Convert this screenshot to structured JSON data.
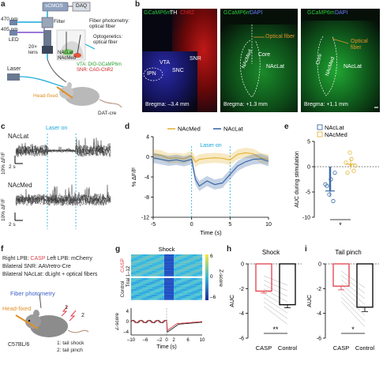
{
  "colors": {
    "nacmed": "#e5b53a",
    "naclat": "#3b6aa8",
    "casp": "#e0404a",
    "laser": "#19a8d8",
    "gcamp": "#28c83a",
    "chr2": "#e02020",
    "dapi": "#2030d0"
  },
  "panels": {
    "a": "a",
    "b": "b",
    "c": "c",
    "d": "d",
    "e": "e",
    "f": "f",
    "g": "g",
    "h": "h",
    "i": "i"
  },
  "a": {
    "nm470": "470 nm",
    "nm405": "405 nm",
    "led": "LED",
    "filter": "Filter",
    "scmos": "sCMOS",
    "daq": "DAQ",
    "lens": "20×\nlens",
    "laser": "Laser",
    "fp": "Fiber photometry:\noptical fiber",
    "optog": "Optogenetics:\noptical fiber",
    "naclat": "NAcLat",
    "nacmed": "NAcMed",
    "vta": "VTA: DIO-GCaMP6m",
    "snr": "SNR: CAG-ChR2",
    "headfixed": "Head-fixed",
    "datcre": "DAT-cre"
  },
  "b": {
    "img1": {
      "t1": "GCaMP6m",
      "t2": "TH",
      "t3": "ChR2",
      "vta": "VTA",
      "snr": "SNR",
      "snc": "SNC",
      "ipn": "IPN",
      "bregma": "Bregma: –3.4 mm"
    },
    "img2": {
      "t1": "GCaMP6m",
      "t2": "DAPI",
      "fiber": "Optical fiber",
      "core": "Core",
      "nacmed": "NAcMed",
      "naclat": "NAcLat",
      "bregma": "Bregma: +1.3 mm"
    },
    "img3": {
      "t1": "GCaMP6m",
      "t2": "DAPI",
      "fiber": "Optical\nfiber",
      "core": "Core",
      "nacmed": "NAcMed",
      "naclat": "NAcLat",
      "bregma": "Bregma: +1.1 mm"
    }
  },
  "c": {
    "naclat": "NAcLat",
    "nacmed": "NAcMed",
    "laser": "Laser on",
    "scale_y": "10% ΔF/F",
    "scale_x": "2 s"
  },
  "chart_data": [
    {
      "type": "line",
      "panel": "d",
      "legend": [
        "NAcMed",
        "NAcLat"
      ],
      "annotation": "Laser on",
      "xlabel": "Time (s)",
      "ylabel": "% ΔF/F",
      "xlim": [
        -5,
        10
      ],
      "ylim": [
        -12,
        4
      ],
      "xticks": [
        -5,
        0,
        5,
        10
      ],
      "yticks": [
        4,
        0,
        -4,
        -8,
        -12
      ],
      "laser_window": [
        0,
        5
      ],
      "series": [
        {
          "name": "NAcMed",
          "x": [
            -5,
            -4,
            -3,
            -2,
            -1,
            0,
            0.5,
            1,
            2,
            3,
            4,
            5,
            6,
            7,
            8,
            9,
            10
          ],
          "y": [
            0.5,
            0.3,
            -0.3,
            -0.2,
            -0.4,
            0.2,
            -1.0,
            -0.5,
            -0.3,
            -0.2,
            -0.3,
            -0.6,
            0.5,
            0.8,
            0.6,
            -0.2,
            -0.5
          ]
        },
        {
          "name": "NAcLat",
          "x": [
            -5,
            -4,
            -3,
            -2,
            -1,
            0,
            0.5,
            1,
            2,
            3,
            4,
            5,
            6,
            7,
            8,
            9,
            10
          ],
          "y": [
            -0.2,
            -0.5,
            -0.8,
            -0.6,
            -0.9,
            -0.5,
            -4.5,
            -5.8,
            -4.8,
            -5.5,
            -5.2,
            -3.5,
            -1.8,
            -1.0,
            -0.5,
            -0.4,
            -0.9
          ]
        }
      ]
    },
    {
      "type": "scatter",
      "panel": "e",
      "legend": [
        "NAcLat",
        "NAcMed"
      ],
      "ylabel": "AUC during stimulation",
      "ylim": [
        -10,
        5
      ],
      "yticks": [
        5,
        0,
        -5,
        -10
      ],
      "categories": [
        "NAcLat",
        "NAcMed"
      ],
      "means": [
        -4.8,
        0.5
      ],
      "sem": [
        1.2,
        1.0
      ],
      "points": [
        [
          -3.5,
          -5.5,
          -6.8,
          -3.8,
          -2.5,
          -1.2
        ],
        [
          0.8,
          2.8,
          -0.8,
          -1.2,
          1.5,
          0.2
        ]
      ],
      "significance": "*"
    },
    {
      "type": "bar",
      "panel": "h",
      "title": "Shock",
      "categories": [
        "CASP",
        "Control"
      ],
      "values": [
        -2.2,
        -3.3
      ],
      "sem": [
        0.15,
        0.25
      ],
      "ylabel": "AUC",
      "ylim": [
        -6,
        0
      ],
      "yticks": [
        0,
        -2,
        -4,
        -6
      ],
      "significance": "**"
    },
    {
      "type": "bar",
      "panel": "i",
      "title": "Tail pinch",
      "categories": [
        "CASP",
        "Control"
      ],
      "values": [
        -1.8,
        -3.5
      ],
      "sem": [
        0.3,
        0.35
      ],
      "ylabel": "AUC",
      "ylim": [
        -6,
        0
      ],
      "yticks": [
        0,
        -2,
        -4,
        -6
      ],
      "significance": "*"
    }
  ],
  "f": {
    "line1a": "Right LPB: ",
    "line1b": "CASP",
    "line1c": " Left LPB: mCherry",
    "line2": "Bilateral SNR: AAVretro-Cre",
    "line3": "Bilateral NAcLat: dLight + optical fibers",
    "fp": "Fiber photometry",
    "headfixed": "Head-fixed",
    "mouse": "C57BL/6",
    "n1": "1",
    "n2": "2",
    "leg1": "1: tail shock",
    "leg2": "2: tail pinch"
  },
  "g": {
    "title": "Shock",
    "casp": "CASP",
    "control": "Control",
    "trial": "Trial 1–12",
    "cb_title": "Z-score",
    "cb_ticks": [
      "6",
      "0",
      "–6"
    ],
    "ylabel": "Z-score",
    "xlabel": "Time (s)",
    "xticks": [
      "–10",
      "–6",
      "–2",
      "0",
      "2",
      "6",
      "10"
    ],
    "yticks": [
      "4",
      "0",
      "–4"
    ]
  }
}
